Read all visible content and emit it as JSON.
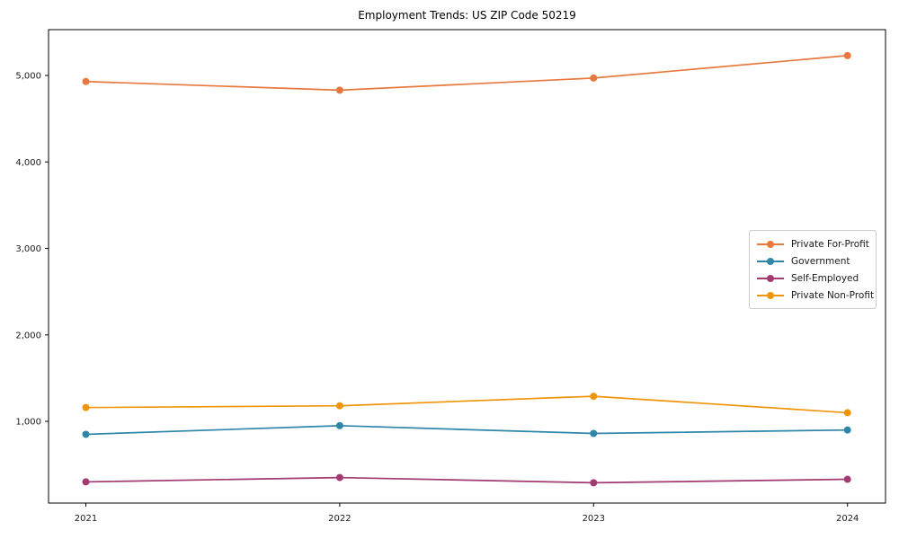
{
  "chart_data": {
    "type": "line",
    "title": "Employment Trends: US ZIP Code 50219",
    "x": [
      2021,
      2022,
      2023,
      2024
    ],
    "x_tick_labels": [
      "2021",
      "2022",
      "2023",
      "2024"
    ],
    "y_ticks": [
      1000,
      2000,
      3000,
      4000,
      5000
    ],
    "y_tick_labels": [
      "1,000",
      "2,000",
      "3,000",
      "4,000",
      "5,000"
    ],
    "ylim": [
      55,
      5530
    ],
    "grid": false,
    "legend_position": "center-right",
    "marker": "circle",
    "series": [
      {
        "name": "Private For-Profit",
        "color": "#e8793e",
        "values": [
          4930,
          4830,
          4970,
          5230
        ]
      },
      {
        "name": "Government",
        "color": "#2e86a8",
        "values": [
          850,
          950,
          860,
          900
        ]
      },
      {
        "name": "Self-Employed",
        "color": "#a23b72",
        "values": [
          300,
          350,
          290,
          330
        ]
      },
      {
        "name": "Private Non-Profit",
        "color": "#f0940a",
        "values": [
          1160,
          1180,
          1290,
          1100
        ]
      }
    ],
    "axis_color": "#000000",
    "tick_label_color": "#1a1a1a"
  }
}
